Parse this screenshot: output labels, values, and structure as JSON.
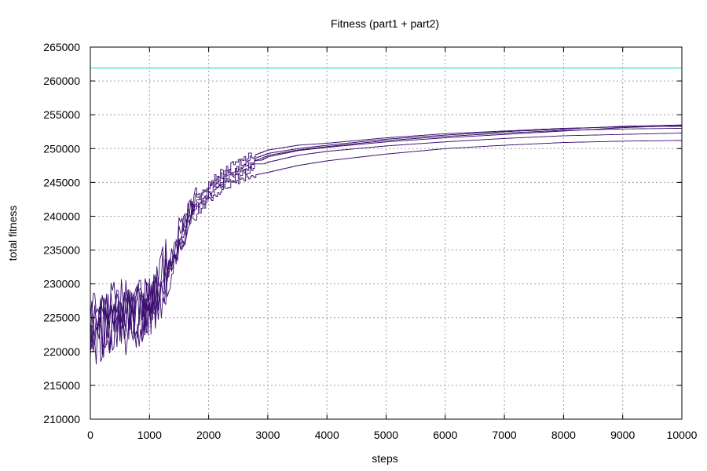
{
  "chart_data": {
    "type": "line",
    "title": "Fitness (part1 + part2)",
    "xlabel": "steps",
    "ylabel": "total fitness",
    "xlim": [
      0,
      10000
    ],
    "ylim": [
      210000,
      265000
    ],
    "x_ticks": [
      0,
      1000,
      2000,
      3000,
      4000,
      5000,
      6000,
      7000,
      8000,
      9000,
      10000
    ],
    "y_ticks": [
      210000,
      215000,
      220000,
      225000,
      230000,
      235000,
      240000,
      245000,
      250000,
      255000,
      260000,
      265000
    ],
    "x_tick_labels": [
      "0",
      "1000",
      "2000",
      "3000",
      "4000",
      "5000",
      "6000",
      "7000",
      "8000",
      "9000",
      "10000"
    ],
    "y_tick_labels": [
      "210000",
      "215000",
      "220000",
      "225000",
      "230000",
      "235000",
      "240000",
      "245000",
      "250000",
      "255000",
      "260000",
      "265000"
    ],
    "grid": true,
    "series_color": "#3b0f70",
    "reference_color": "#40e0d0",
    "reference_line": {
      "y": 261900
    },
    "series": [
      {
        "x": [
          0,
          300,
          600,
          900,
          1100,
          1300,
          1500,
          1700,
          2000,
          2300,
          2600,
          3000,
          3500,
          4000,
          5000,
          6000,
          7000,
          8000,
          9000,
          10000
        ],
        "y": [
          222000,
          224000,
          225500,
          226500,
          228000,
          231000,
          236000,
          240500,
          243500,
          245500,
          247000,
          248800,
          249700,
          250200,
          251000,
          251600,
          252100,
          252600,
          253100,
          253400
        ]
      },
      {
        "x": [
          0,
          300,
          600,
          900,
          1100,
          1300,
          1500,
          1700,
          2000,
          2300,
          2600,
          3000,
          3500,
          4000,
          5000,
          6000,
          7000,
          8000,
          9000,
          10000
        ],
        "y": [
          223000,
          225000,
          226000,
          227000,
          228500,
          232000,
          237000,
          241500,
          244500,
          246500,
          248000,
          249300,
          250000,
          250500,
          251400,
          252000,
          252500,
          252900,
          253300,
          253500
        ]
      },
      {
        "x": [
          0,
          300,
          600,
          900,
          1100,
          1300,
          1500,
          1700,
          2000,
          2300,
          2600,
          3000,
          3500,
          4000,
          5000,
          6000,
          7000,
          8000,
          9000,
          10000
        ],
        "y": [
          221000,
          223500,
          224500,
          226000,
          227500,
          230500,
          235500,
          240000,
          243000,
          245000,
          246500,
          248000,
          249000,
          249600,
          250400,
          251000,
          251500,
          251900,
          252100,
          252300
        ]
      },
      {
        "x": [
          0,
          300,
          600,
          900,
          1100,
          1300,
          1500,
          1700,
          2000,
          2300,
          2600,
          3000,
          3500,
          4000,
          5000,
          6000,
          7000,
          8000,
          9000,
          10000
        ],
        "y": [
          224000,
          225500,
          226500,
          227500,
          229000,
          233000,
          238000,
          242000,
          245000,
          247000,
          248500,
          249800,
          250500,
          250800,
          251600,
          252200,
          252600,
          253000,
          253200,
          253300
        ]
      },
      {
        "x": [
          0,
          300,
          600,
          900,
          1100,
          1300,
          1500,
          1700,
          2000,
          2300,
          2600,
          3000,
          3500,
          4000,
          5000,
          6000,
          7000,
          8000,
          9000,
          10000
        ],
        "y": [
          220500,
          223000,
          224000,
          225500,
          227000,
          230000,
          235000,
          239500,
          242500,
          244500,
          245800,
          246500,
          247500,
          248200,
          249200,
          250000,
          250500,
          250900,
          251100,
          251200
        ]
      },
      {
        "x": [
          0,
          300,
          600,
          900,
          1100,
          1300,
          1500,
          1700,
          2000,
          2300,
          2600,
          3000,
          3500,
          4000,
          5000,
          6000,
          7000,
          8000,
          9000,
          10000
        ],
        "y": [
          222500,
          224500,
          225000,
          226800,
          228200,
          231500,
          236500,
          241000,
          244000,
          246000,
          247500,
          249000,
          249800,
          250300,
          251200,
          251800,
          252300,
          252700,
          252900,
          253000
        ]
      }
    ]
  }
}
